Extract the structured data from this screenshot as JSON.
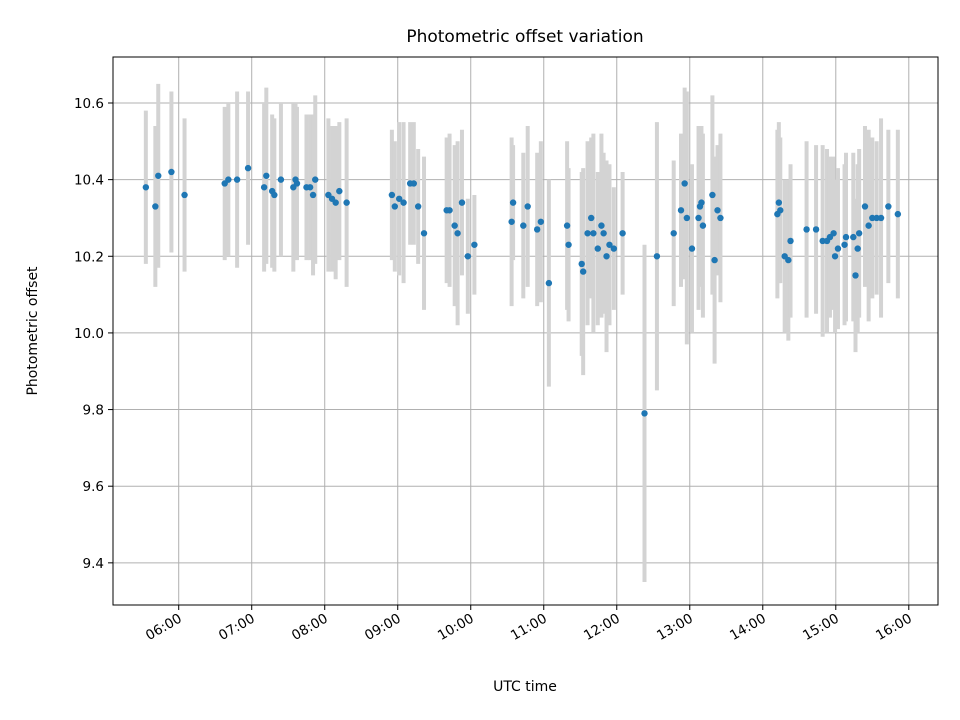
{
  "chart_data": {
    "type": "scatter",
    "title": "Photometric offset variation",
    "xlabel": "UTC time",
    "ylabel": "Photometric offset",
    "x_unit": "hours UTC",
    "xlim": [
      5.1,
      16.4
    ],
    "ylim": [
      9.29,
      10.72
    ],
    "x_ticks": [
      6,
      7,
      8,
      9,
      10,
      11,
      12,
      13,
      14,
      15,
      16
    ],
    "x_tick_labels": [
      "06:00",
      "07:00",
      "08:00",
      "09:00",
      "10:00",
      "11:00",
      "12:00",
      "13:00",
      "14:00",
      "15:00",
      "16:00"
    ],
    "y_ticks": [
      9.4,
      9.6,
      9.8,
      10.0,
      10.2,
      10.4,
      10.6
    ],
    "y_tick_labels": [
      "9.4",
      "9.6",
      "9.8",
      "10.0",
      "10.2",
      "10.4",
      "10.6"
    ],
    "grid": true,
    "point_color": "#1f77b4",
    "errorbar_color": "#d3d3d3",
    "points": [
      {
        "x": 5.55,
        "y": 10.38,
        "err": 0.2
      },
      {
        "x": 5.68,
        "y": 10.33,
        "err": 0.21
      },
      {
        "x": 5.72,
        "y": 10.41,
        "err": 0.24
      },
      {
        "x": 5.9,
        "y": 10.42,
        "err": 0.21
      },
      {
        "x": 6.08,
        "y": 10.36,
        "err": 0.2
      },
      {
        "x": 6.63,
        "y": 10.39,
        "err": 0.2
      },
      {
        "x": 6.68,
        "y": 10.4,
        "err": 0.2
      },
      {
        "x": 6.8,
        "y": 10.4,
        "err": 0.23
      },
      {
        "x": 6.95,
        "y": 10.43,
        "err": 0.2
      },
      {
        "x": 7.17,
        "y": 10.38,
        "err": 0.22
      },
      {
        "x": 7.2,
        "y": 10.41,
        "err": 0.23
      },
      {
        "x": 7.28,
        "y": 10.37,
        "err": 0.2
      },
      {
        "x": 7.31,
        "y": 10.36,
        "err": 0.2
      },
      {
        "x": 7.4,
        "y": 10.4,
        "err": 0.2
      },
      {
        "x": 7.57,
        "y": 10.38,
        "err": 0.22
      },
      {
        "x": 7.6,
        "y": 10.4,
        "err": 0.2
      },
      {
        "x": 7.62,
        "y": 10.39,
        "err": 0.2
      },
      {
        "x": 7.75,
        "y": 10.38,
        "err": 0.19
      },
      {
        "x": 7.8,
        "y": 10.38,
        "err": 0.19
      },
      {
        "x": 7.84,
        "y": 10.36,
        "err": 0.21
      },
      {
        "x": 7.87,
        "y": 10.4,
        "err": 0.22
      },
      {
        "x": 8.05,
        "y": 10.36,
        "err": 0.2
      },
      {
        "x": 8.1,
        "y": 10.35,
        "err": 0.19
      },
      {
        "x": 8.15,
        "y": 10.34,
        "err": 0.2
      },
      {
        "x": 8.2,
        "y": 10.37,
        "err": 0.18
      },
      {
        "x": 8.3,
        "y": 10.34,
        "err": 0.22
      },
      {
        "x": 8.92,
        "y": 10.36,
        "err": 0.17
      },
      {
        "x": 8.96,
        "y": 10.33,
        "err": 0.17
      },
      {
        "x": 9.02,
        "y": 10.35,
        "err": 0.2
      },
      {
        "x": 9.08,
        "y": 10.34,
        "err": 0.21
      },
      {
        "x": 9.17,
        "y": 10.39,
        "err": 0.16
      },
      {
        "x": 9.22,
        "y": 10.39,
        "err": 0.16
      },
      {
        "x": 9.28,
        "y": 10.33,
        "err": 0.15
      },
      {
        "x": 9.36,
        "y": 10.26,
        "err": 0.2
      },
      {
        "x": 9.67,
        "y": 10.32,
        "err": 0.19
      },
      {
        "x": 9.71,
        "y": 10.32,
        "err": 0.2
      },
      {
        "x": 9.78,
        "y": 10.28,
        "err": 0.21
      },
      {
        "x": 9.82,
        "y": 10.26,
        "err": 0.24
      },
      {
        "x": 9.88,
        "y": 10.34,
        "err": 0.19
      },
      {
        "x": 9.96,
        "y": 10.2,
        "err": 0.15
      },
      {
        "x": 10.05,
        "y": 10.23,
        "err": 0.13
      },
      {
        "x": 10.56,
        "y": 10.29,
        "err": 0.22
      },
      {
        "x": 10.58,
        "y": 10.34,
        "err": 0.15
      },
      {
        "x": 10.72,
        "y": 10.28,
        "err": 0.19
      },
      {
        "x": 10.78,
        "y": 10.33,
        "err": 0.21
      },
      {
        "x": 10.91,
        "y": 10.27,
        "err": 0.2
      },
      {
        "x": 10.96,
        "y": 10.29,
        "err": 0.21
      },
      {
        "x": 11.07,
        "y": 10.13,
        "err": 0.27
      },
      {
        "x": 11.32,
        "y": 10.28,
        "err": 0.22
      },
      {
        "x": 11.34,
        "y": 10.23,
        "err": 0.2
      },
      {
        "x": 11.52,
        "y": 10.18,
        "err": 0.24
      },
      {
        "x": 11.54,
        "y": 10.16,
        "err": 0.27
      },
      {
        "x": 11.6,
        "y": 10.26,
        "err": 0.24
      },
      {
        "x": 11.65,
        "y": 10.3,
        "err": 0.21
      },
      {
        "x": 11.68,
        "y": 10.26,
        "err": 0.26
      },
      {
        "x": 11.74,
        "y": 10.22,
        "err": 0.2
      },
      {
        "x": 11.79,
        "y": 10.28,
        "err": 0.24
      },
      {
        "x": 11.82,
        "y": 10.26,
        "err": 0.21
      },
      {
        "x": 11.86,
        "y": 10.2,
        "err": 0.25
      },
      {
        "x": 11.9,
        "y": 10.23,
        "err": 0.21
      },
      {
        "x": 11.96,
        "y": 10.22,
        "err": 0.16
      },
      {
        "x": 12.08,
        "y": 10.26,
        "err": 0.16
      },
      {
        "x": 12.38,
        "y": 9.79,
        "err": 0.44
      },
      {
        "x": 12.55,
        "y": 10.2,
        "err": 0.35
      },
      {
        "x": 12.78,
        "y": 10.26,
        "err": 0.19
      },
      {
        "x": 12.88,
        "y": 10.32,
        "err": 0.2
      },
      {
        "x": 12.93,
        "y": 10.39,
        "err": 0.25
      },
      {
        "x": 12.96,
        "y": 10.3,
        "err": 0.33
      },
      {
        "x": 13.03,
        "y": 10.22,
        "err": 0.22
      },
      {
        "x": 13.12,
        "y": 10.3,
        "err": 0.24
      },
      {
        "x": 13.14,
        "y": 10.33,
        "err": 0.21
      },
      {
        "x": 13.16,
        "y": 10.34,
        "err": 0.2
      },
      {
        "x": 13.18,
        "y": 10.28,
        "err": 0.24
      },
      {
        "x": 13.31,
        "y": 10.36,
        "err": 0.26
      },
      {
        "x": 13.34,
        "y": 10.19,
        "err": 0.27
      },
      {
        "x": 13.38,
        "y": 10.32,
        "err": 0.17
      },
      {
        "x": 13.42,
        "y": 10.3,
        "err": 0.22
      },
      {
        "x": 14.2,
        "y": 10.31,
        "err": 0.22
      },
      {
        "x": 14.22,
        "y": 10.34,
        "err": 0.21
      },
      {
        "x": 14.24,
        "y": 10.32,
        "err": 0.19
      },
      {
        "x": 14.3,
        "y": 10.2,
        "err": 0.2
      },
      {
        "x": 14.35,
        "y": 10.19,
        "err": 0.21
      },
      {
        "x": 14.38,
        "y": 10.24,
        "err": 0.2
      },
      {
        "x": 14.6,
        "y": 10.27,
        "err": 0.23
      },
      {
        "x": 14.73,
        "y": 10.27,
        "err": 0.22
      },
      {
        "x": 14.82,
        "y": 10.24,
        "err": 0.25
      },
      {
        "x": 14.88,
        "y": 10.24,
        "err": 0.24
      },
      {
        "x": 14.92,
        "y": 10.25,
        "err": 0.21
      },
      {
        "x": 14.97,
        "y": 10.26,
        "err": 0.2
      },
      {
        "x": 14.99,
        "y": 10.2,
        "err": 0.2
      },
      {
        "x": 15.03,
        "y": 10.22,
        "err": 0.21
      },
      {
        "x": 15.12,
        "y": 10.23,
        "err": 0.21
      },
      {
        "x": 15.14,
        "y": 10.25,
        "err": 0.22
      },
      {
        "x": 15.24,
        "y": 10.25,
        "err": 0.22
      },
      {
        "x": 15.27,
        "y": 10.15,
        "err": 0.2
      },
      {
        "x": 15.3,
        "y": 10.22,
        "err": 0.22
      },
      {
        "x": 15.32,
        "y": 10.26,
        "err": 0.22
      },
      {
        "x": 15.4,
        "y": 10.33,
        "err": 0.21
      },
      {
        "x": 15.45,
        "y": 10.28,
        "err": 0.25
      },
      {
        "x": 15.5,
        "y": 10.3,
        "err": 0.21
      },
      {
        "x": 15.56,
        "y": 10.3,
        "err": 0.2
      },
      {
        "x": 15.62,
        "y": 10.3,
        "err": 0.26
      },
      {
        "x": 15.72,
        "y": 10.33,
        "err": 0.2
      },
      {
        "x": 15.85,
        "y": 10.31,
        "err": 0.22
      }
    ]
  }
}
